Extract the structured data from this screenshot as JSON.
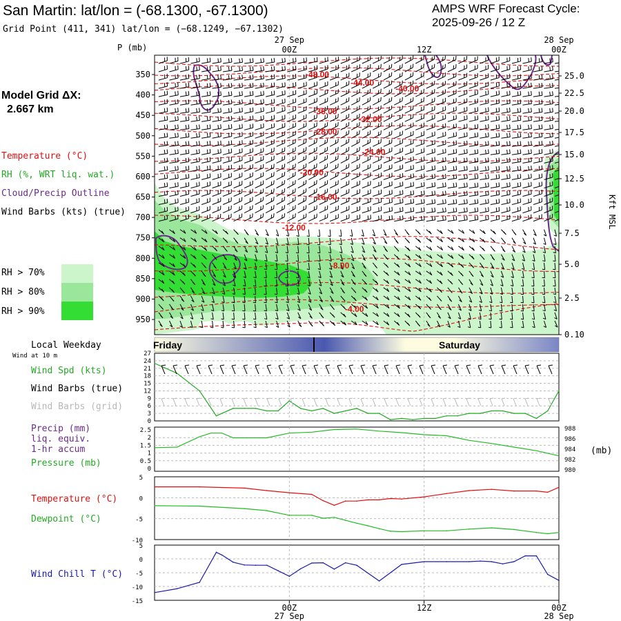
{
  "header": {
    "title": "San Martin:  lat/lon = (-68.1300, -67.1300)",
    "subtitle": "Grid Point (411, 341) lat/lon = (−68.1249, −67.1302)",
    "cycle_line1": "AMPS WRF Forecast Cycle:",
    "cycle_line2": "2025-09-26 / 12  Z"
  },
  "left_labels": {
    "grid_label": "Model Grid ΔX:",
    "grid_value": "2.667 km",
    "temperature": "Temperature (°C)",
    "rh": "RH (%, WRT liq. wat.)",
    "cloud": "Cloud/Precip Outline",
    "wind": "Wind Barbs (kts) (true)",
    "rh70": "RH > 70%",
    "rh80": "RH > 80%",
    "rh90": "RH > 90%",
    "local_weekday": "Local Weekday",
    "wind10m": "Wind at 10 m",
    "wind_spd": "Wind Spd (kts)",
    "wind_true": "Wind Barbs (true)",
    "wind_grid": "Wind Barbs (grid)",
    "precip1": "Precip (mm)",
    "precip2": "liq. equiv.",
    "precip3": "1-hr accum",
    "pressure": "Pressure (mb)",
    "temp2": "Temperature (°C)",
    "dewpoint": "Dewpoint (°C)",
    "windchill": "Wind Chill T (°C)",
    "pressure_unit": "(mb)"
  },
  "colors": {
    "temperature": "#e01010",
    "rh": "#22aa22",
    "cloud": "#6a2a8a",
    "wind_grid": "#b8b8b8",
    "rh70": "#ccf5cc",
    "rh80": "#9ae69a",
    "rh90": "#33dd33",
    "dewpoint": "#22bb22",
    "windchill": "#1a1aaa",
    "pressure": "#22bb22"
  },
  "time_axis": {
    "top_labels": [
      {
        "h": 12,
        "line1": "27 Sep",
        "line2": "00Z"
      },
      {
        "h": 24,
        "line1": "",
        "line2": "12Z"
      },
      {
        "h": 36,
        "line1": "28 Sep",
        "line2": "00Z"
      }
    ],
    "bottom_labels": [
      {
        "h": 12,
        "line1": "00Z",
        "line2": "27 Sep"
      },
      {
        "h": 24,
        "line1": "12Z",
        "line2": ""
      },
      {
        "h": 36,
        "line1": "00Z",
        "line2": "28 Sep"
      }
    ]
  },
  "weekdays": [
    {
      "label": "Friday",
      "align": "left"
    },
    {
      "label": "Saturday",
      "align": "center"
    }
  ],
  "chart_data": [
    {
      "type": "heatmap",
      "name_hidden": "cross-section",
      "x_range_hours": [
        0,
        36
      ],
      "ylabel": "P (mb)",
      "ylabel_right": "Kft MSL",
      "pressure_ticks": [
        350,
        400,
        450,
        500,
        550,
        600,
        650,
        700,
        750,
        800,
        850,
        900,
        950
      ],
      "kft_ticks": [
        "25.0",
        "22.5",
        "20.0",
        "17.5",
        "15.0",
        "12.5",
        "10.0",
        "7.5",
        "5.0",
        "2.5",
        "0.10"
      ],
      "temperature_labels": [
        {
          "h": 14.5,
          "p": 350,
          "text": "-48.00"
        },
        {
          "h": 18.5,
          "p": 370,
          "text": "-44.00"
        },
        {
          "h": 22.5,
          "p": 385,
          "text": "-40.00"
        },
        {
          "h": 15.2,
          "p": 440,
          "text": "-36.00"
        },
        {
          "h": 19.2,
          "p": 460,
          "text": "-32.00"
        },
        {
          "h": 15.2,
          "p": 490,
          "text": "-28.00"
        },
        {
          "h": 19.5,
          "p": 540,
          "text": "-24.00"
        },
        {
          "h": 14.0,
          "p": 590,
          "text": "-20.00"
        },
        {
          "h": 15.2,
          "p": 650,
          "text": "-16.00"
        },
        {
          "h": 12.4,
          "p": 725,
          "text": "-12.00"
        },
        {
          "h": 16.5,
          "p": 818,
          "text": "-8.00"
        },
        {
          "h": 17.8,
          "p": 925,
          "text": "-4.00"
        }
      ]
    },
    {
      "type": "line",
      "name_hidden": "wind-speed",
      "yticks": [
        0,
        3,
        6,
        9,
        12,
        15,
        18,
        21,
        24,
        27
      ],
      "ylim": [
        0,
        27
      ],
      "x": [
        0,
        2,
        4,
        5.5,
        7,
        8,
        9,
        10,
        11,
        12,
        13,
        14,
        15,
        16,
        17,
        18,
        19,
        20,
        21,
        22,
        23,
        24,
        25,
        26,
        27,
        28,
        29,
        30,
        31,
        32,
        33,
        34,
        35,
        36
      ],
      "series": [
        {
          "values": [
            23,
            19,
            12,
            2,
            5,
            5,
            5,
            4,
            4,
            8,
            5,
            4,
            5,
            3,
            4,
            5,
            3,
            3,
            0.5,
            1,
            0.5,
            1,
            1,
            2,
            2,
            3,
            3,
            4,
            4,
            3,
            3,
            1,
            4,
            12
          ]
        }
      ]
    },
    {
      "type": "line",
      "name_hidden": "pressure",
      "yticks_left": [
        "0",
        "0.5",
        "1",
        "1.5",
        "2",
        "2.5"
      ],
      "yticks_right": [
        "980",
        "982",
        "984",
        "986",
        "988"
      ],
      "ylim": [
        980,
        988
      ],
      "x": [
        0,
        2,
        4,
        5,
        6,
        7,
        8,
        10,
        12,
        14,
        16,
        18,
        20,
        22,
        24,
        26,
        28,
        30,
        32,
        34,
        36
      ],
      "series": [
        {
          "values": [
            984.3,
            984.4,
            986.4,
            987.1,
            987.1,
            986.2,
            986.2,
            986.2,
            987.1,
            987.3,
            987.8,
            987.9,
            987.5,
            987.2,
            986.8,
            986.6,
            985.7,
            985.1,
            984.4,
            983.7,
            982.7
          ]
        }
      ]
    },
    {
      "type": "line",
      "name_hidden": "temperature-dewpoint",
      "yticks": [
        5,
        0,
        -5,
        -10
      ],
      "ylim": [
        -10,
        5
      ],
      "x": [
        0,
        4,
        8,
        10,
        12,
        14,
        15,
        16,
        17,
        18,
        19,
        20,
        21,
        22,
        24,
        26,
        28,
        30,
        32,
        34,
        35,
        36
      ],
      "series": [
        {
          "values": [
            2.6,
            2.6,
            2.3,
            1.7,
            1.2,
            0.8,
            -0.7,
            -1.8,
            -0.8,
            -0.8,
            -0.5,
            -0.5,
            -0.2,
            -0.3,
            0.2,
            1.0,
            1.7,
            2.0,
            1.6,
            1.6,
            1.3,
            2.5
          ]
        },
        {
          "values": [
            -1.9,
            -2.0,
            -2.6,
            -3.1,
            -4.2,
            -4.2,
            -4.9,
            -4.7,
            -5.4,
            -6.1,
            -6.7,
            -7.4,
            -8.0,
            -8.1,
            -7.9,
            -7.9,
            -7.5,
            -7.2,
            -7.6,
            -8.3,
            -8.6,
            -8.3
          ]
        }
      ]
    },
    {
      "type": "line",
      "name_hidden": "wind-chill",
      "yticks": [
        5,
        0,
        -5,
        -10,
        -15
      ],
      "ylim": [
        -15,
        5
      ],
      "x": [
        0,
        2,
        4,
        5.5,
        6,
        7,
        8,
        9,
        10,
        11,
        12,
        13,
        14,
        15,
        16,
        17,
        18,
        20,
        22,
        24,
        26,
        28,
        29,
        30,
        31,
        32,
        33,
        34,
        35,
        36
      ],
      "series": [
        {
          "values": [
            -12.2,
            -10.8,
            -8.5,
            2.4,
            1.4,
            -1.2,
            -2.2,
            -2.3,
            -2.3,
            -4.3,
            -6.3,
            -3.6,
            -1.5,
            -1.4,
            -3.7,
            -1.4,
            -2.3,
            -8.0,
            -2.0,
            -1.0,
            -1.0,
            -1.0,
            -0.8,
            -1.0,
            -1.8,
            -1.0,
            1.1,
            1.1,
            -5.6,
            -7.8
          ]
        }
      ]
    }
  ]
}
